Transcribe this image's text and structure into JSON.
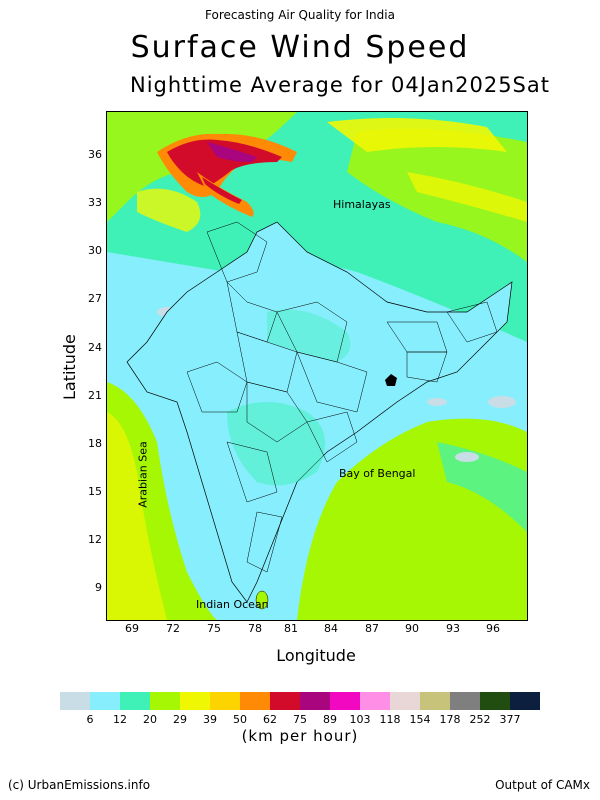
{
  "header": {
    "top_line": "Forecasting Air Quality for India",
    "title": "Surface Wind Speed",
    "subtitle": "Nighttime Average for 04Jan2025Sat"
  },
  "axes": {
    "xlabel": "Longitude",
    "ylabel": "Latitude",
    "lon_ticks": [
      "69",
      "72",
      "75",
      "78",
      "81",
      "84",
      "87",
      "90",
      "93",
      "96"
    ],
    "lat_ticks": [
      "36",
      "33",
      "30",
      "27",
      "24",
      "21",
      "18",
      "15",
      "12",
      "9"
    ]
  },
  "map_labels": {
    "himalayas": "Himalayas",
    "arabian_sea": "Arabian Sea",
    "bay_of_bengal": "Bay of Bengal",
    "indian_ocean": "Indian Ocean"
  },
  "legend": {
    "colors": [
      "#c8dde6",
      "#86eefc",
      "#3ff1b7",
      "#a6f703",
      "#eff703",
      "#fed400",
      "#ff8a06",
      "#d30b2a",
      "#a8057e",
      "#f208c0",
      "#ff8ee6",
      "#e8d7d6",
      "#c7c37b",
      "#7f7f7f",
      "#224d10",
      "#0c1f3e"
    ],
    "ticks": [
      "6",
      "12",
      "20",
      "29",
      "39",
      "50",
      "62",
      "75",
      "89",
      "103",
      "118",
      "154",
      "178",
      "252",
      "377"
    ],
    "unit": "(km per hour)"
  },
  "footer": {
    "left": "(c) UrbanEmissions.info",
    "right": "Output of CAMx"
  }
}
